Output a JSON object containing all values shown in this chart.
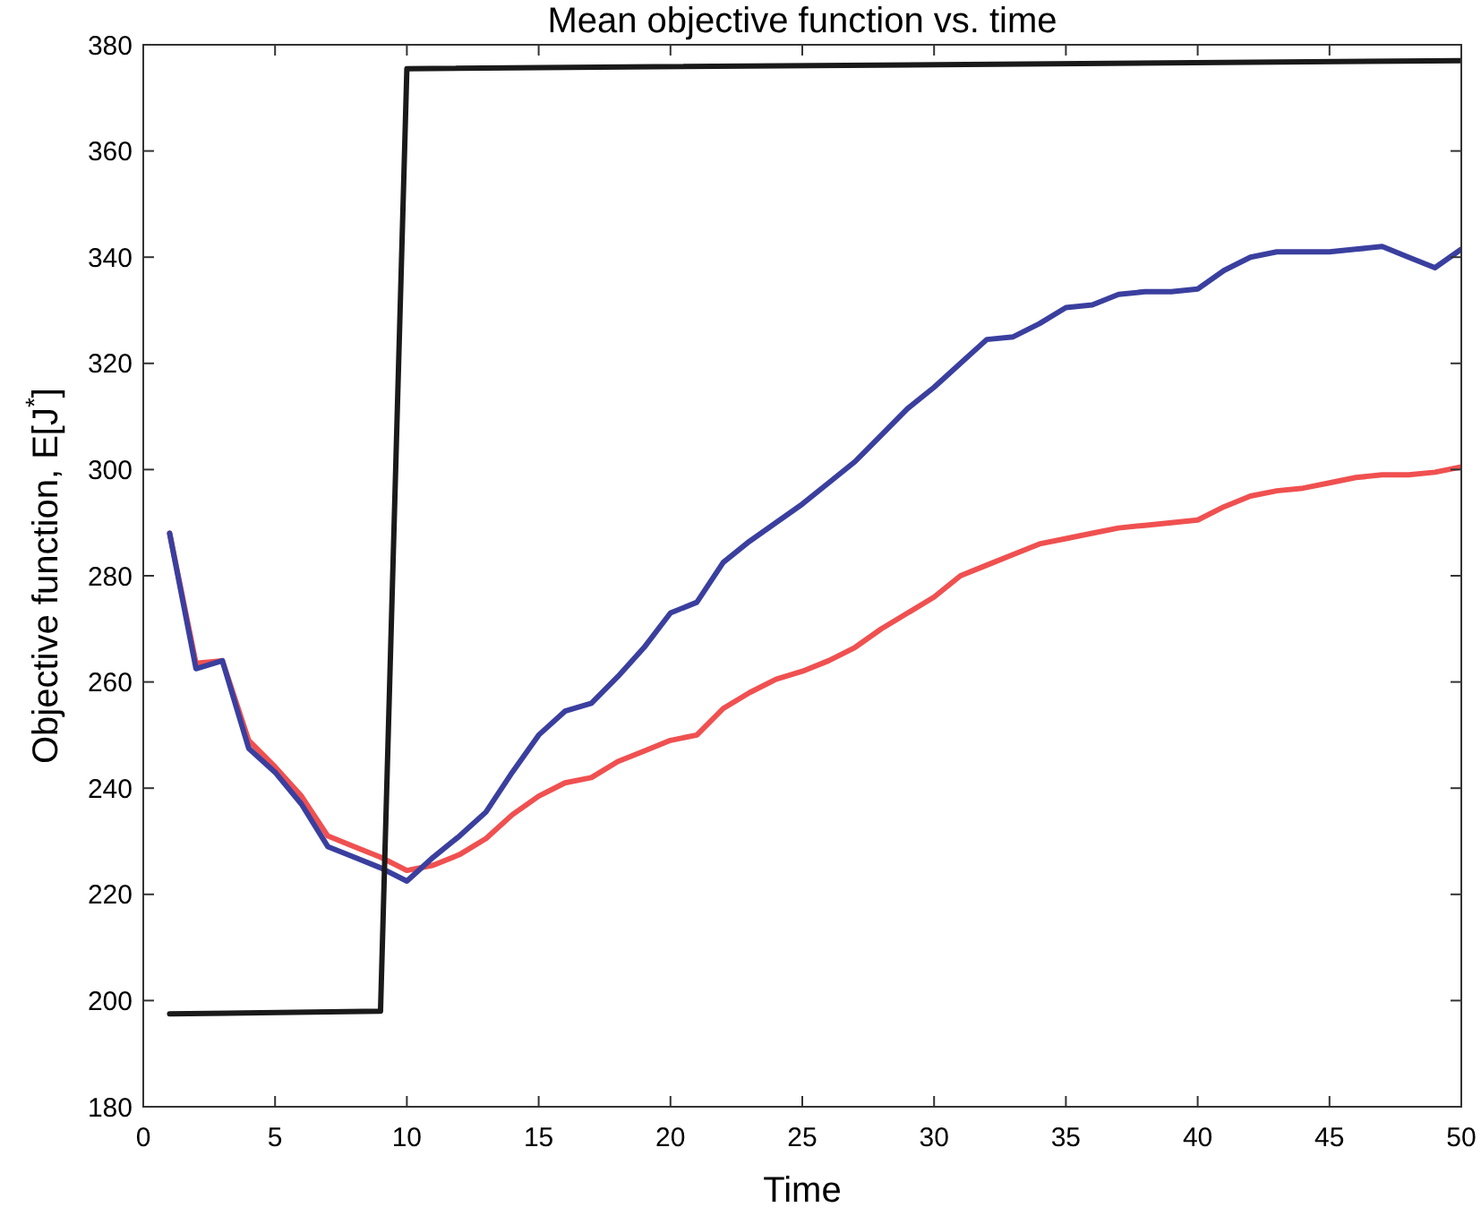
{
  "chart_data": {
    "type": "line",
    "title": "Mean objective function vs. time",
    "xlabel": "Time",
    "ylabel": "Objective function, E[J$^{*}$]",
    "xlim": [
      0,
      50
    ],
    "xticks": [
      0,
      5,
      10,
      15,
      20,
      25,
      30,
      35,
      40,
      45,
      50
    ],
    "ylim": [
      180,
      380
    ],
    "yticks": [
      180,
      200,
      220,
      240,
      260,
      280,
      300,
      320,
      340,
      360,
      380
    ],
    "grid": false,
    "line_style": "solid",
    "marker": "none",
    "x": [
      1,
      2,
      3,
      4,
      5,
      6,
      7,
      8,
      9,
      10,
      11,
      12,
      13,
      14,
      15,
      16,
      17,
      18,
      19,
      20,
      21,
      22,
      23,
      24,
      25,
      26,
      27,
      28,
      29,
      30,
      31,
      32,
      33,
      34,
      35,
      36,
      37,
      38,
      39,
      40,
      41,
      42,
      43,
      44,
      45,
      46,
      47,
      48,
      49,
      50
    ],
    "series": [
      {
        "color": "#f05050",
        "values": [
          288,
          263.5,
          264,
          249,
          244,
          238.5,
          231,
          229,
          227,
          224.5,
          225.5,
          227.5,
          230.5,
          235,
          238.5,
          241,
          242,
          245,
          247,
          249,
          250,
          255,
          258,
          260.5,
          262,
          264,
          266.5,
          270,
          273,
          276,
          280,
          282,
          284,
          286,
          287,
          288,
          289,
          289.5,
          290,
          290.5,
          293,
          295,
          296,
          296.5,
          297.5,
          298.5,
          299,
          299,
          299.5,
          300.5
        ]
      },
      {
        "color": "#3a3f9f",
        "values": [
          288,
          262.5,
          264,
          247.5,
          243,
          237,
          229,
          227,
          225,
          222.5,
          227,
          231,
          235.5,
          243,
          250,
          254.5,
          256,
          261,
          266.5,
          273,
          275,
          282.5,
          286.5,
          290,
          293.5,
          297.5,
          301.5,
          306.5,
          311.5,
          315.5,
          320,
          324.5,
          325,
          327.5,
          330.5,
          331,
          333,
          333.5,
          333.5,
          334,
          337.5,
          340,
          341,
          341,
          341,
          341.5,
          342,
          340,
          338,
          341.5
        ]
      },
      {
        "color": "#1a1a1a",
        "x": [
          1,
          9,
          10,
          50
        ],
        "values": [
          197.5,
          198,
          375.5,
          377
        ]
      }
    ]
  }
}
